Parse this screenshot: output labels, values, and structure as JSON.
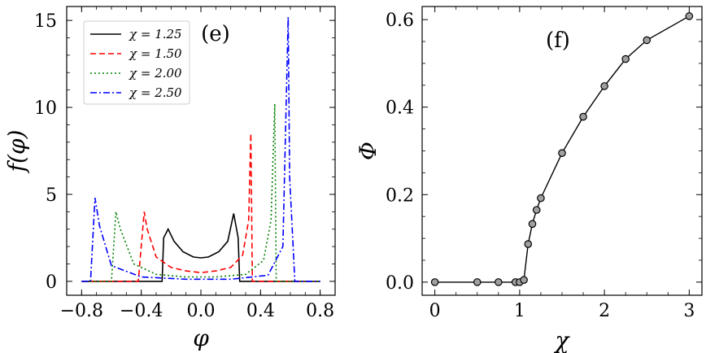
{
  "chart_data": [
    {
      "panel": "(e)",
      "type": "line",
      "xlabel": "φ",
      "ylabel": "f(φ)",
      "xlim": [
        -0.9,
        0.9
      ],
      "ylim": [
        -0.8,
        15.8
      ],
      "xticks": [
        -0.8,
        -0.4,
        0.0,
        0.4,
        0.8
      ],
      "xtick_labels": [
        "−0.8",
        "−0.4",
        "0.0",
        "0.4",
        "0.8"
      ],
      "yticks": [
        0,
        5,
        10,
        15
      ],
      "ytick_labels": [
        "0",
        "5",
        "10",
        "15"
      ],
      "legend_position": "top-left",
      "series": [
        {
          "name": "χ = 1.25",
          "color": "#000000",
          "dash": "solid",
          "x": [
            -0.8,
            -0.26,
            -0.25,
            -0.22,
            -0.18,
            -0.12,
            -0.05,
            0.0,
            0.05,
            0.12,
            0.18,
            0.22,
            0.25,
            0.26,
            0.8
          ],
          "y": [
            0,
            0,
            2.5,
            3.0,
            2.3,
            1.7,
            1.4,
            1.35,
            1.4,
            1.7,
            2.3,
            3.9,
            2.5,
            0,
            0
          ]
        },
        {
          "name": "χ = 1.50",
          "color": "#ff0000",
          "dash": "dashed",
          "x": [
            -0.8,
            -0.42,
            -0.38,
            -0.36,
            -0.3,
            -0.2,
            -0.1,
            0.0,
            0.1,
            0.2,
            0.28,
            0.32,
            0.335,
            0.345,
            0.8
          ],
          "y": [
            0,
            0,
            4.0,
            3.0,
            1.4,
            0.8,
            0.6,
            0.5,
            0.6,
            0.8,
            1.5,
            3.5,
            8.5,
            0,
            0
          ]
        },
        {
          "name": "χ = 2.00",
          "color": "#008000",
          "dash": "dotted",
          "x": [
            -0.8,
            -0.6,
            -0.57,
            -0.54,
            -0.45,
            -0.3,
            -0.1,
            0.1,
            0.3,
            0.42,
            0.47,
            0.495,
            0.505,
            0.8
          ],
          "y": [
            0,
            0,
            4.0,
            3.0,
            1.0,
            0.4,
            0.25,
            0.25,
            0.4,
            1.2,
            3.5,
            10.2,
            0,
            0
          ]
        },
        {
          "name": "χ = 2.50",
          "color": "#0000ff",
          "dash": "dash-dot",
          "x": [
            -0.8,
            -0.74,
            -0.71,
            -0.68,
            -0.6,
            -0.4,
            -0.1,
            0.2,
            0.45,
            0.55,
            0.585,
            0.595,
            0.63,
            0.8
          ],
          "y": [
            0,
            0,
            4.8,
            3.2,
            0.9,
            0.25,
            0.12,
            0.12,
            0.35,
            2.0,
            15.2,
            6.0,
            0,
            0
          ]
        }
      ],
      "legend": [
        "χ = 1.25",
        "χ = 1.50",
        "χ = 2.00",
        "χ = 2.50"
      ]
    },
    {
      "panel": "(f)",
      "type": "line",
      "xlabel": "χ",
      "ylabel": "Φ",
      "xlim": [
        -0.15,
        3.15
      ],
      "ylim": [
        -0.03,
        0.63
      ],
      "xticks": [
        0,
        1,
        2,
        3
      ],
      "xtick_labels": [
        "0",
        "1",
        "2",
        "3"
      ],
      "yticks": [
        0.0,
        0.2,
        0.4,
        0.6
      ],
      "ytick_labels": [
        "0.0",
        "0.2",
        "0.4",
        "0.6"
      ],
      "series": [
        {
          "name": "Φ",
          "color": "#000000",
          "marker": "circle",
          "marker_fill": "#a0a0a0",
          "x": [
            0,
            0.5,
            0.75,
            0.95,
            1.0,
            1.05,
            1.1,
            1.15,
            1.2,
            1.25,
            1.5,
            1.75,
            2.0,
            2.25,
            2.5,
            3.0
          ],
          "y": [
            0.0,
            0.0,
            0.0,
            0.0,
            0.0,
            0.005,
            0.087,
            0.133,
            0.165,
            0.192,
            0.295,
            0.378,
            0.448,
            0.51,
            0.553,
            0.608
          ]
        }
      ]
    }
  ]
}
